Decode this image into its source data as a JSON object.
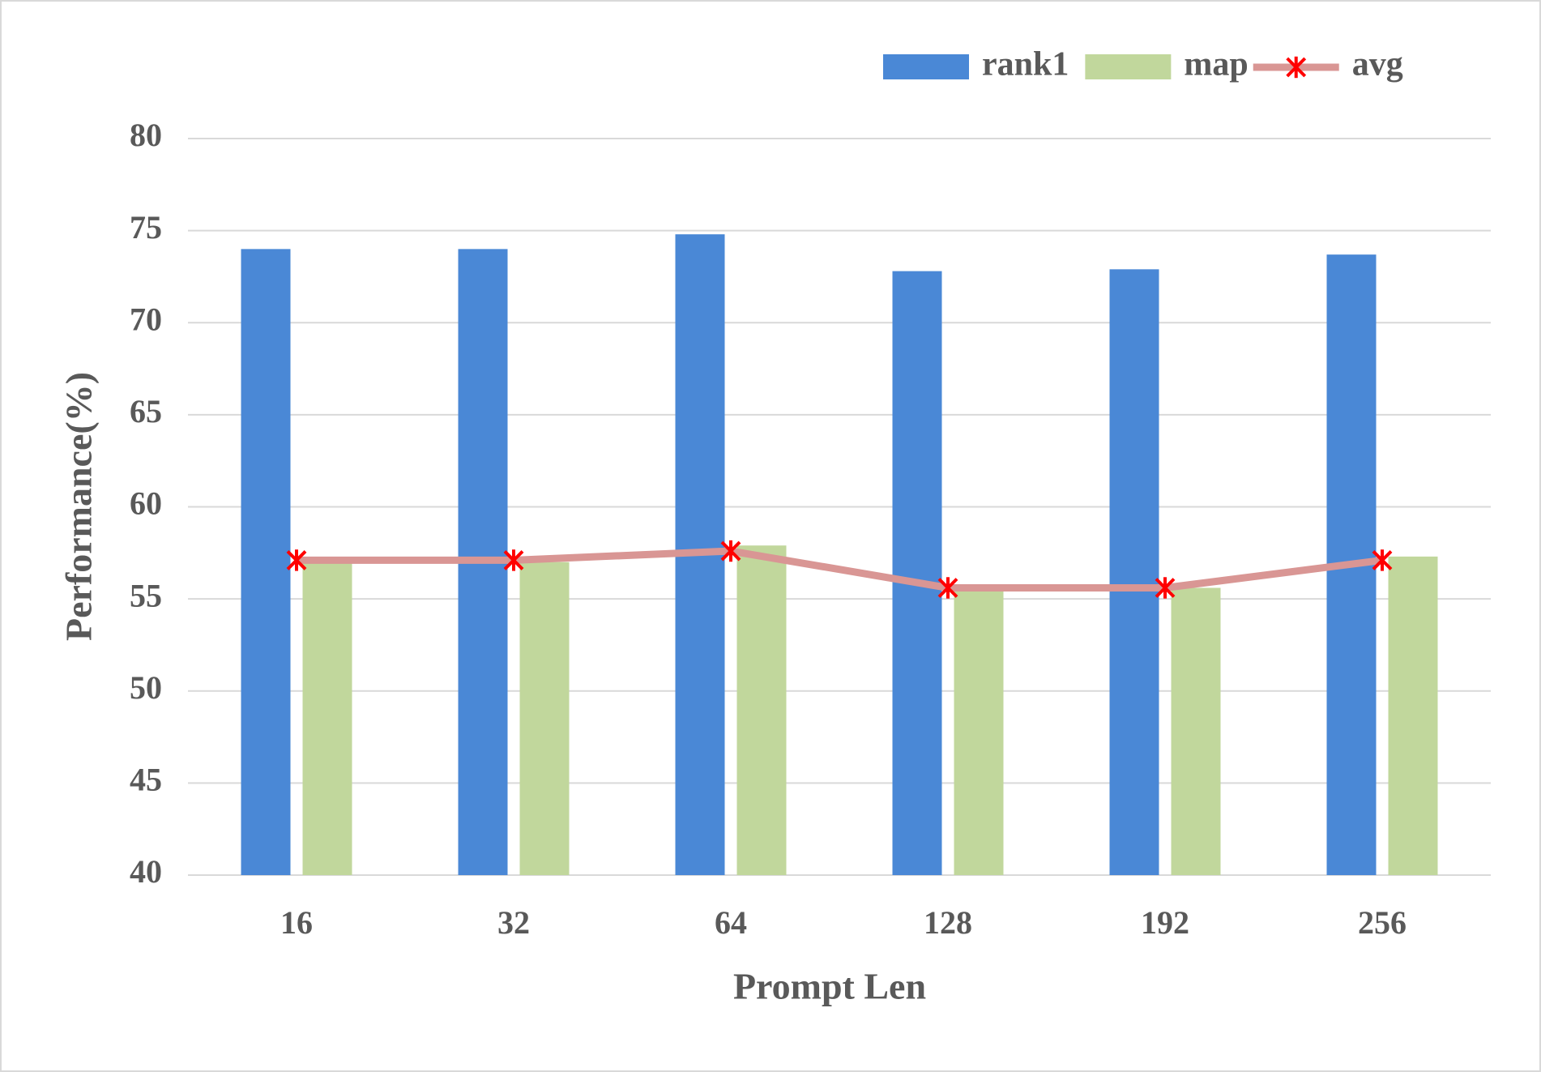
{
  "chart_data": {
    "type": "bar",
    "categories": [
      "16",
      "32",
      "64",
      "128",
      "192",
      "256"
    ],
    "series": [
      {
        "name": "rank1",
        "type": "bar",
        "color": "#4a88d6",
        "values": [
          74.0,
          74.0,
          74.8,
          72.8,
          72.9,
          73.7
        ]
      },
      {
        "name": "map",
        "type": "bar",
        "color": "#c1d79c",
        "values": [
          57.0,
          57.0,
          57.9,
          55.5,
          55.6,
          57.3
        ]
      },
      {
        "name": "avg",
        "type": "line",
        "color": "#d99694",
        "marker_color": "#ff0000",
        "values": [
          57.1,
          57.1,
          57.6,
          55.6,
          55.6,
          57.1
        ]
      }
    ],
    "xlabel": "Prompt Len",
    "ylabel": "Performance(%)",
    "ylim": [
      40,
      80
    ],
    "yticks": [
      40,
      45,
      50,
      55,
      60,
      65,
      70,
      75,
      80
    ],
    "grid": true,
    "legend": "top-right"
  }
}
